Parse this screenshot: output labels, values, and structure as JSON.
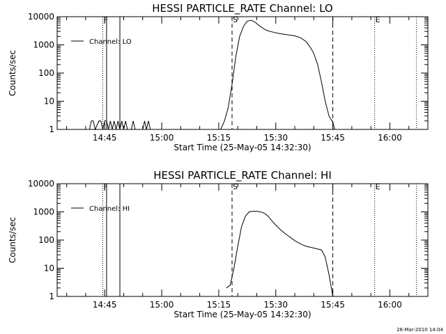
{
  "chart_data": [
    {
      "type": "line",
      "title": "HESSI PARTICLE_RATE Channel: LO",
      "xlabel": "Start Time (25-May-05 14:32:30)",
      "ylabel": "Counts/sec",
      "y_scale": "log",
      "ylim": [
        1,
        10000
      ],
      "xlim": [
        "14:32:30",
        "16:10:00"
      ],
      "x_ticks": [
        "14:45",
        "15:00",
        "15:15",
        "15:30",
        "15:45",
        "16:00"
      ],
      "y_ticks": [
        "1",
        "10",
        "100",
        "1000",
        "10000"
      ],
      "legend": {
        "position": "top-left",
        "entries": [
          "Channel: LO"
        ]
      },
      "series": [
        {
          "name": "Channel: LO",
          "x": [
            "14:41:00",
            "14:41:30",
            "14:42:00",
            "14:42:30",
            "14:43:30",
            "14:44:00",
            "14:44:30",
            "14:45:00",
            "14:45:30",
            "14:46:00",
            "14:46:30",
            "14:47:00",
            "14:47:30",
            "14:48:00",
            "14:48:30",
            "14:49:00",
            "14:49:30",
            "14:50:00",
            "14:50:30",
            "14:51:00",
            "14:52:00",
            "14:52:30",
            "14:53:00",
            "14:53:30",
            "14:54:00",
            "14:55:00",
            "14:55:30",
            "14:56:00",
            "14:56:30",
            "14:57:00",
            "15:15:30",
            "15:16:30",
            "15:17:30",
            "15:18:30",
            "15:19:30",
            "15:20:30",
            "15:21:30",
            "15:22:30",
            "15:23:30",
            "15:24:30",
            "15:25:30",
            "15:26:30",
            "15:27:30",
            "15:29:00",
            "15:30:30",
            "15:32:00",
            "15:33:30",
            "15:35:00",
            "15:36:30",
            "15:38:00",
            "15:39:00",
            "15:40:00",
            "15:41:00",
            "15:42:00",
            "15:43:00",
            "15:44:00",
            "15:45:00",
            "15:45:30"
          ],
          "values": [
            1,
            2,
            2,
            1,
            2,
            2,
            1,
            2,
            2,
            1,
            2,
            1,
            2,
            1,
            2,
            1,
            2,
            1,
            2,
            1,
            1,
            2,
            1,
            1,
            1,
            1,
            2,
            1,
            2,
            1,
            1,
            2,
            6,
            40,
            400,
            2000,
            4500,
            7000,
            7500,
            6500,
            5000,
            4000,
            3300,
            2900,
            2600,
            2400,
            2250,
            2100,
            1800,
            1300,
            850,
            500,
            200,
            50,
            10,
            3,
            1.8,
            1
          ]
        }
      ],
      "markers": [
        {
          "label": "F",
          "style": "dotted",
          "x": "14:44:30"
        },
        {
          "style": "solid",
          "x": "14:45:30"
        },
        {
          "style": "solid",
          "x": "14:49:00"
        },
        {
          "label": "S",
          "style": "dashed",
          "x": "15:18:30"
        },
        {
          "style": "dashed",
          "x": "15:45:00"
        },
        {
          "label": "E",
          "style": "dotted",
          "x": "15:56:00"
        },
        {
          "style": "dotted",
          "x": "16:07:00"
        }
      ]
    },
    {
      "type": "line",
      "title": "HESSI PARTICLE_RATE Channel: HI",
      "xlabel": "Start Time (25-May-05 14:32:30)",
      "ylabel": "Counts/sec",
      "y_scale": "log",
      "ylim": [
        1,
        10000
      ],
      "xlim": [
        "14:32:30",
        "16:10:00"
      ],
      "x_ticks": [
        "14:45",
        "15:00",
        "15:15",
        "15:30",
        "15:45",
        "16:00"
      ],
      "y_ticks": [
        "1",
        "10",
        "100",
        "1000",
        "10000"
      ],
      "legend": {
        "position": "top-left",
        "entries": [
          "Channel: HI"
        ]
      },
      "series": [
        {
          "name": "Channel: HI",
          "x": [
            "15:17:00",
            "15:18:00",
            "15:19:00",
            "15:20:00",
            "15:21:00",
            "15:22:00",
            "15:23:00",
            "15:24:00",
            "15:25:00",
            "15:26:00",
            "15:27:00",
            "15:28:00",
            "15:29:00",
            "15:30:00",
            "15:31:00",
            "15:32:00",
            "15:33:00",
            "15:34:00",
            "15:35:00",
            "15:36:00",
            "15:37:00",
            "15:38:00",
            "15:39:00",
            "15:40:00",
            "15:41:00",
            "15:42:00",
            "15:43:00",
            "15:44:00",
            "15:45:00"
          ],
          "values": [
            2,
            2.5,
            10,
            60,
            300,
            700,
            1000,
            1050,
            1050,
            1000,
            900,
            700,
            480,
            340,
            250,
            190,
            150,
            120,
            95,
            80,
            68,
            60,
            56,
            52,
            48,
            45,
            25,
            6,
            1
          ]
        }
      ],
      "markers": [
        {
          "label": "F",
          "style": "dotted",
          "x": "14:44:30"
        },
        {
          "style": "solid",
          "x": "14:45:30"
        },
        {
          "style": "solid",
          "x": "14:49:00"
        },
        {
          "label": "S",
          "style": "dashed",
          "x": "15:18:30"
        },
        {
          "style": "dashed",
          "x": "15:45:00"
        },
        {
          "label": "E",
          "style": "dotted",
          "x": "15:56:00"
        },
        {
          "style": "dotted",
          "x": "16:07:00"
        }
      ]
    }
  ],
  "footer": {
    "timestamp": "26-Mar-2010 14:04"
  }
}
